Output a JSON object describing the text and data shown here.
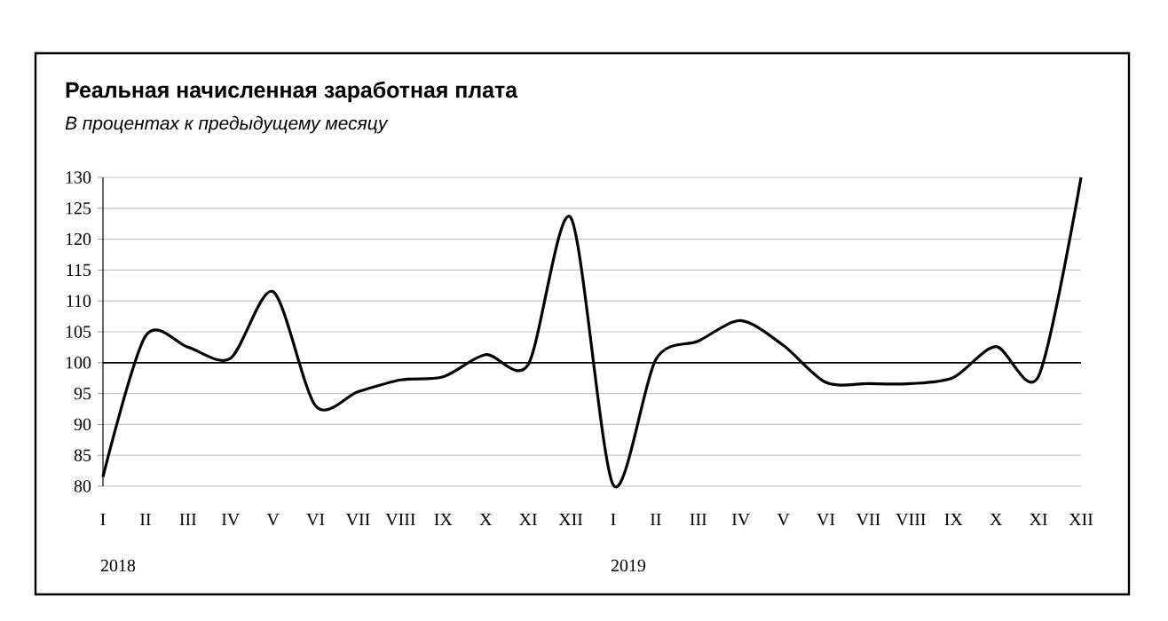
{
  "chart_data": {
    "type": "line",
    "title": "Реальная начисленная заработная плата",
    "subtitle": "В процентах к предыдущему месяцу",
    "categories": [
      "I",
      "II",
      "III",
      "IV",
      "V",
      "VI",
      "VII",
      "VIII",
      "IX",
      "X",
      "XI",
      "XII",
      "I",
      "II",
      "III",
      "IV",
      "V",
      "VI",
      "VII",
      "VIII",
      "IX",
      "X",
      "XI",
      "XII"
    ],
    "series": [
      {
        "color": "#000000",
        "values": [
          81.5,
          104.3,
          102.5,
          100.7,
          111.5,
          93,
          95.3,
          97.2,
          97.7,
          101.3,
          99.7,
          123.5,
          80.2,
          100.5,
          103.5,
          106.8,
          102.8,
          96.8,
          96.6,
          96.6,
          97.6,
          102.6,
          97.8,
          130
        ]
      }
    ],
    "ylim": [
      80,
      130
    ],
    "yticks": [
      80,
      85,
      90,
      95,
      100,
      105,
      110,
      115,
      120,
      125,
      130
    ],
    "grid": "y",
    "marker": "none",
    "line_style": "solid",
    "ref_lines": [
      {
        "axis": "y",
        "value": 100,
        "color": "#000000"
      }
    ],
    "annotations": [
      "2018",
      "2019"
    ]
  }
}
